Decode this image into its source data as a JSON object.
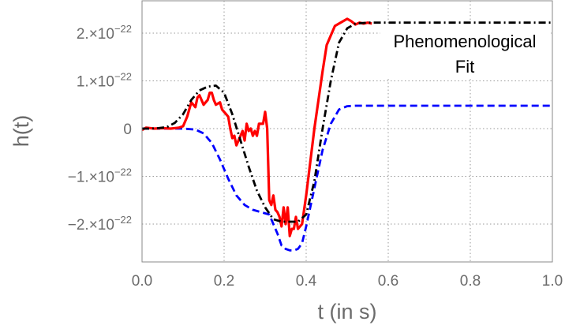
{
  "chart_data": {
    "type": "line",
    "xlabel": "t (in s)",
    "ylabel": "h(t)",
    "xlim": [
      0,
      1.0
    ],
    "ylim": [
      -2.7,
      2.35
    ],
    "y_scale_exponent": -22,
    "grid": true,
    "grid_style": "dotted",
    "x_ticks": [
      {
        "v": 0.0,
        "label": "0.0"
      },
      {
        "v": 0.2,
        "label": "0.2"
      },
      {
        "v": 0.4,
        "label": "0.4"
      },
      {
        "v": 0.6,
        "label": "0.6"
      },
      {
        "v": 0.8,
        "label": "0.8"
      },
      {
        "v": 1.0,
        "label": "1.0"
      }
    ],
    "y_ticks": [
      {
        "v": 2,
        "mant": "2.",
        "exp": "−22"
      },
      {
        "v": 1,
        "mant": "1.",
        "exp": "−22"
      },
      {
        "v": 0,
        "plain": "0"
      },
      {
        "v": -1,
        "mant": "−1.",
        "exp": "−22"
      },
      {
        "v": -2,
        "mant": "−2.",
        "exp": "−22"
      }
    ],
    "x_tick_labels": [
      "0.0",
      "0.2",
      "0.4",
      "0.6",
      "0.8",
      "1.0"
    ],
    "y_tick_labels": [
      "2.×10−22",
      "1.×10−22",
      "0",
      "−1.×10−22",
      "−2.×10−22"
    ],
    "annotation_lines": [
      "Phenomenological",
      "Fit"
    ],
    "series": [
      {
        "color": "#ff0000",
        "style": "solid",
        "x": [
          0.0,
          0.01,
          0.03,
          0.05,
          0.07,
          0.09,
          0.1,
          0.11,
          0.12,
          0.13,
          0.135,
          0.14,
          0.15,
          0.155,
          0.16,
          0.165,
          0.17,
          0.175,
          0.18,
          0.19,
          0.195,
          0.2,
          0.205,
          0.21,
          0.215,
          0.22,
          0.225,
          0.23,
          0.235,
          0.24,
          0.245,
          0.25,
          0.255,
          0.26,
          0.265,
          0.27,
          0.275,
          0.28,
          0.285,
          0.29,
          0.295,
          0.3,
          0.305,
          0.31,
          0.315,
          0.32,
          0.325,
          0.33,
          0.335,
          0.34,
          0.345,
          0.35,
          0.355,
          0.36,
          0.365,
          0.37,
          0.375,
          0.38,
          0.385,
          0.39,
          0.4,
          0.41,
          0.42,
          0.43,
          0.44,
          0.45,
          0.46,
          0.47,
          0.48,
          0.49,
          0.5,
          0.51,
          0.52,
          0.53,
          0.54,
          0.55,
          0.56
        ],
        "y": [
          -0.03,
          0.02,
          0.0,
          0.01,
          0.0,
          0.02,
          0.05,
          0.25,
          0.55,
          0.45,
          0.65,
          0.7,
          0.5,
          0.55,
          0.6,
          0.75,
          0.75,
          0.6,
          0.5,
          0.55,
          0.4,
          0.35,
          0.3,
          0.25,
          0.0,
          -0.2,
          -0.15,
          -0.35,
          -0.25,
          -0.15,
          -0.05,
          -0.25,
          0.1,
          -0.05,
          0.0,
          -0.15,
          -0.05,
          -0.15,
          0.1,
          0.1,
          0.1,
          0.35,
          0.0,
          -1.5,
          -1.6,
          -1.4,
          -1.7,
          -1.75,
          -1.85,
          -2.05,
          -1.65,
          -2.0,
          -1.65,
          -2.25,
          -2.1,
          -2.1,
          -1.85,
          -2.1,
          -2.05,
          -2.0,
          -1.4,
          -0.7,
          0.0,
          0.6,
          1.2,
          1.75,
          1.95,
          2.15,
          2.2,
          2.25,
          2.3,
          2.25,
          2.18,
          2.22,
          2.2,
          2.22,
          2.2
        ]
      },
      {
        "color": "#000000",
        "style": "dashdot",
        "x": [
          0.0,
          0.02,
          0.04,
          0.06,
          0.08,
          0.1,
          0.12,
          0.14,
          0.16,
          0.18,
          0.2,
          0.22,
          0.24,
          0.26,
          0.28,
          0.3,
          0.32,
          0.34,
          0.36,
          0.38,
          0.4,
          0.42,
          0.44,
          0.46,
          0.48,
          0.5,
          0.52,
          0.55,
          0.6,
          0.7,
          0.8,
          0.9,
          1.0
        ],
        "y": [
          0.0,
          0.0,
          0.01,
          0.03,
          0.12,
          0.3,
          0.6,
          0.8,
          0.88,
          0.9,
          0.75,
          0.3,
          -0.25,
          -0.8,
          -1.3,
          -1.65,
          -1.9,
          -1.95,
          -1.95,
          -1.95,
          -1.8,
          -1.1,
          0.0,
          1.0,
          1.8,
          2.1,
          2.2,
          2.22,
          2.22,
          2.22,
          2.22,
          2.22,
          2.22
        ]
      },
      {
        "color": "#0000ff",
        "style": "dashed",
        "x": [
          0.0,
          0.05,
          0.1,
          0.13,
          0.15,
          0.17,
          0.19,
          0.21,
          0.23,
          0.25,
          0.27,
          0.29,
          0.31,
          0.33,
          0.34,
          0.35,
          0.36,
          0.37,
          0.38,
          0.39,
          0.4,
          0.42,
          0.44,
          0.46,
          0.48,
          0.5,
          0.52,
          0.6,
          0.7,
          0.8,
          0.9,
          1.0
        ],
        "y": [
          0.0,
          0.0,
          0.0,
          -0.02,
          -0.1,
          -0.3,
          -0.65,
          -1.05,
          -1.4,
          -1.6,
          -1.7,
          -1.75,
          -1.8,
          -2.2,
          -2.45,
          -2.52,
          -2.55,
          -2.55,
          -2.52,
          -2.4,
          -2.05,
          -1.25,
          -0.45,
          0.1,
          0.4,
          0.47,
          0.48,
          0.48,
          0.48,
          0.48,
          0.48,
          0.48
        ]
      }
    ]
  }
}
